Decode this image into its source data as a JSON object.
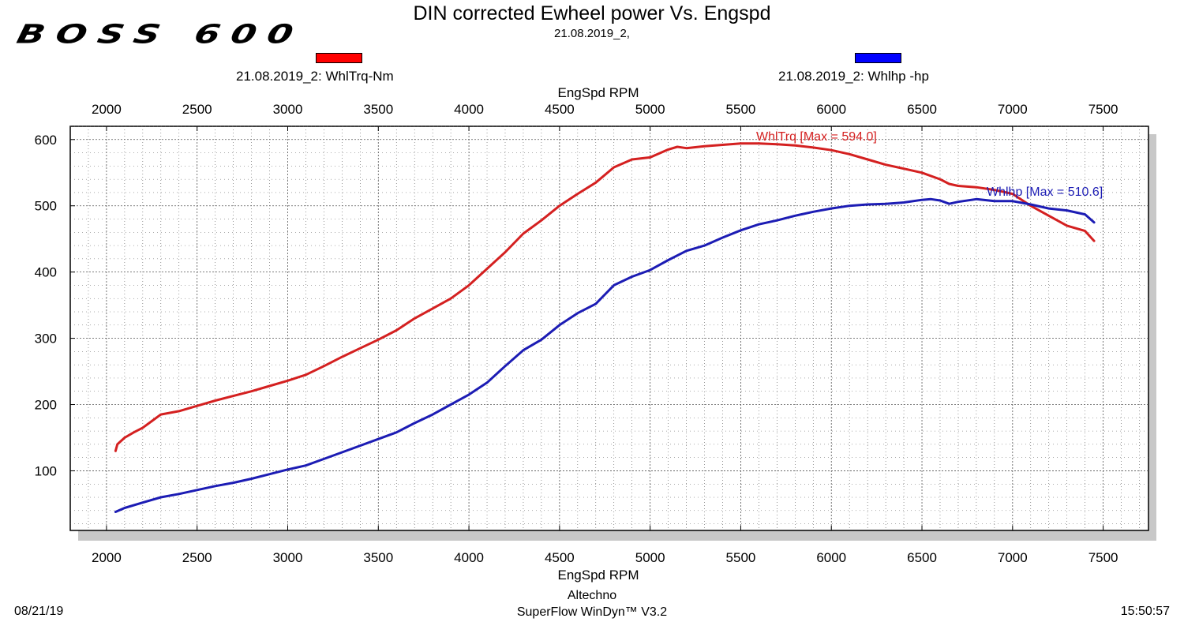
{
  "logo": "BOSS 600",
  "footer": {
    "date": "08/21/19",
    "company": "Altechno",
    "software": "SuperFlow WinDyn™ V3.2",
    "time": "15:50:57"
  },
  "colors": {
    "torque": "#d42020",
    "power": "#1c1cb4",
    "grid": "#555555",
    "shadow": "#c8c8c8"
  },
  "chart_data": {
    "type": "line",
    "title": "DIN corrected Ewheel power Vs. Engspd",
    "subtitle": "21.08.2019_2,",
    "xlabel": "EngSpd RPM",
    "xlabel_top": "EngSpd RPM",
    "xlim": [
      1800,
      7750
    ],
    "ylim": [
      10,
      620
    ],
    "x_ticks": [
      2000,
      2500,
      3000,
      3500,
      4000,
      4500,
      5000,
      5500,
      6000,
      6500,
      7000,
      7500
    ],
    "y_ticks": [
      100,
      200,
      300,
      400,
      500,
      600
    ],
    "grid": true,
    "legend": [
      {
        "label": "21.08.2019_2: WhlTrq-Nm",
        "color": "#ff0000"
      },
      {
        "label": "21.08.2019_2: Whlhp -hp",
        "color": "#0000ff"
      }
    ],
    "series": [
      {
        "name": "WhlTrq-Nm",
        "annotation": "WhlTrq [Max = 594.0]",
        "color": "#d42020",
        "x": [
          2050,
          2060,
          2100,
          2150,
          2200,
          2250,
          2300,
          2400,
          2500,
          2600,
          2700,
          2800,
          2900,
          3000,
          3100,
          3200,
          3300,
          3400,
          3500,
          3600,
          3700,
          3800,
          3900,
          4000,
          4100,
          4200,
          4300,
          4400,
          4500,
          4600,
          4700,
          4800,
          4900,
          5000,
          5100,
          5150,
          5200,
          5300,
          5400,
          5500,
          5600,
          5700,
          5800,
          5900,
          6000,
          6100,
          6200,
          6300,
          6400,
          6500,
          6600,
          6650,
          6700,
          6800,
          6900,
          7000,
          7100,
          7200,
          7300,
          7400,
          7450
        ],
        "y": [
          130,
          140,
          150,
          158,
          165,
          175,
          185,
          190,
          198,
          206,
          213,
          220,
          228,
          236,
          245,
          258,
          272,
          285,
          298,
          312,
          330,
          345,
          360,
          380,
          405,
          430,
          458,
          478,
          500,
          518,
          535,
          558,
          570,
          573,
          585,
          589,
          587,
          590,
          592,
          594,
          594,
          593,
          591,
          588,
          584,
          578,
          570,
          562,
          556,
          550,
          540,
          533,
          530,
          528,
          524,
          518,
          500,
          485,
          470,
          462,
          447
        ]
      },
      {
        "name": "Whlhp -hp",
        "annotation": "Whlhp  [Max = 510.6]",
        "color": "#1c1cb4",
        "x": [
          2050,
          2100,
          2200,
          2300,
          2400,
          2500,
          2600,
          2700,
          2800,
          2900,
          3000,
          3100,
          3200,
          3300,
          3400,
          3500,
          3600,
          3700,
          3800,
          3900,
          4000,
          4100,
          4200,
          4300,
          4400,
          4500,
          4600,
          4700,
          4800,
          4900,
          5000,
          5100,
          5200,
          5300,
          5400,
          5500,
          5600,
          5700,
          5800,
          5900,
          6000,
          6100,
          6200,
          6300,
          6400,
          6500,
          6550,
          6600,
          6650,
          6700,
          6800,
          6900,
          7000,
          7100,
          7200,
          7300,
          7350,
          7400,
          7450
        ],
        "y": [
          38,
          44,
          52,
          60,
          65,
          71,
          77,
          82,
          88,
          95,
          102,
          108,
          118,
          128,
          138,
          148,
          158,
          172,
          185,
          200,
          215,
          233,
          258,
          282,
          298,
          320,
          338,
          352,
          380,
          393,
          403,
          418,
          432,
          440,
          452,
          463,
          472,
          478,
          485,
          491,
          496,
          500,
          502,
          503,
          505,
          509,
          510,
          508,
          503,
          506,
          510,
          507,
          507,
          502,
          496,
          493,
          490,
          487,
          475
        ]
      }
    ]
  }
}
